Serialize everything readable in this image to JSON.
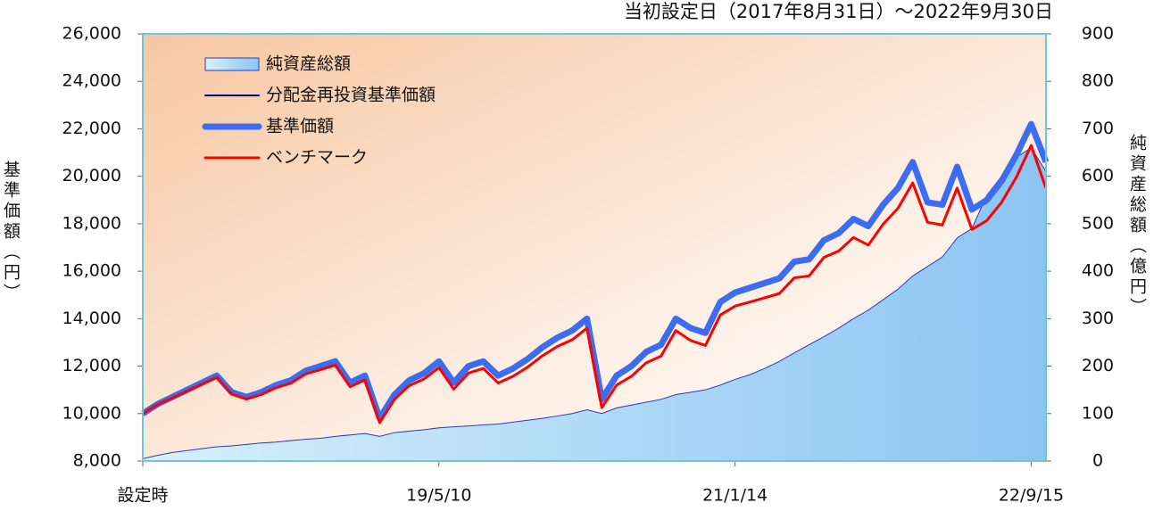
{
  "chart_data": {
    "type": "line",
    "title": "当初設定日（2017年8月31日）〜2022年9月30日",
    "y_label": "基準価額（円）",
    "y2_label": "純資産総額（億円）",
    "categories": [
      "設定時",
      null,
      null,
      null,
      null,
      null,
      null,
      null,
      null,
      null,
      null,
      null,
      null,
      null,
      null,
      null,
      null,
      null,
      null,
      null,
      "19/5/10",
      null,
      null,
      null,
      null,
      null,
      null,
      null,
      null,
      null,
      null,
      null,
      null,
      null,
      null,
      null,
      null,
      null,
      null,
      null,
      "21/1/14",
      null,
      null,
      null,
      null,
      null,
      null,
      null,
      null,
      null,
      null,
      null,
      null,
      null,
      null,
      null,
      null,
      null,
      null,
      null,
      "22/9/15",
      null
    ],
    "series": [
      {
        "name": "純資産総額",
        "color": "#a9dcf8",
        "axis": "y2",
        "kind": "area",
        "values": [
          5,
          12,
          18,
          22,
          26,
          30,
          32,
          35,
          38,
          40,
          43,
          46,
          48,
          52,
          55,
          58,
          52,
          60,
          63,
          66,
          70,
          72,
          74,
          76,
          78,
          82,
          86,
          90,
          95,
          100,
          108,
          100,
          112,
          118,
          124,
          130,
          140,
          145,
          150,
          160,
          172,
          182,
          195,
          210,
          228,
          245,
          262,
          280,
          300,
          318,
          340,
          362,
          390,
          410,
          430,
          470,
          490,
          560,
          600,
          640,
          660,
          610
        ]
      },
      {
        "name": "分配金再投資基準価額",
        "color": "#000080",
        "values": [
          10000,
          10400,
          10700,
          11000,
          11300,
          11600,
          10900,
          10700,
          10900,
          11200,
          11400,
          11800,
          12000,
          12200,
          11300,
          11600,
          9800,
          10800,
          11400,
          11700,
          12200,
          11300,
          12000,
          12200,
          11600,
          11900,
          12300,
          12800,
          13200,
          13500,
          14000,
          10600,
          11600,
          12000,
          12600,
          12900,
          14000,
          13600,
          13400,
          14700,
          15100,
          15300,
          15500,
          15700,
          16400,
          16500,
          17300,
          17600,
          18200,
          17900,
          18800,
          19500,
          20600,
          18900,
          18800,
          20400,
          18600,
          19000,
          19800,
          20900,
          22200,
          20600
        ]
      },
      {
        "name": "基準価額",
        "color": "#3c6cf0",
        "width": 7,
        "values": [
          10000,
          10400,
          10700,
          11000,
          11300,
          11600,
          10900,
          10700,
          10900,
          11200,
          11400,
          11800,
          12000,
          12200,
          11300,
          11600,
          9800,
          10800,
          11400,
          11700,
          12200,
          11300,
          12000,
          12200,
          11600,
          11900,
          12300,
          12800,
          13200,
          13500,
          14000,
          10600,
          11600,
          12000,
          12600,
          12900,
          14000,
          13600,
          13400,
          14700,
          15100,
          15300,
          15500,
          15700,
          16400,
          16500,
          17300,
          17600,
          18200,
          17900,
          18800,
          19500,
          20600,
          18900,
          18800,
          20400,
          18600,
          19000,
          19800,
          20900,
          22200,
          20600
        ]
      },
      {
        "name": "ベンチマーク",
        "color": "#ff0000",
        "width": 3,
        "values": [
          10000,
          10380,
          10660,
          10950,
          11240,
          11530,
          10820,
          10610,
          10800,
          11090,
          11280,
          11670,
          11850,
          12040,
          11130,
          11420,
          9620,
          10600,
          11180,
          11460,
          11940,
          11030,
          11710,
          11900,
          11290,
          11570,
          11960,
          12440,
          12830,
          13110,
          13600,
          10250,
          11200,
          11570,
          12140,
          12420,
          13500,
          13080,
          12870,
          14150,
          14530,
          14700,
          14880,
          15060,
          15720,
          15800,
          16580,
          16850,
          17420,
          17100,
          17980,
          18650,
          19720,
          18060,
          17950,
          19500,
          17760,
          18130,
          18900,
          19960,
          21300,
          19500
        ]
      }
    ],
    "ylim": [
      8000,
      26000
    ],
    "yticks": [
      {
        "value": 8000,
        "label": "8,000"
      },
      {
        "value": 10000,
        "label": "10,000"
      },
      {
        "value": 12000,
        "label": "12,000"
      },
      {
        "value": 14000,
        "label": "14,000"
      },
      {
        "value": 16000,
        "label": "16,000"
      },
      {
        "value": 18000,
        "label": "18,000"
      },
      {
        "value": 20000,
        "label": "20,000"
      },
      {
        "value": 22000,
        "label": "22,000"
      },
      {
        "value": 24000,
        "label": "24,000"
      },
      {
        "value": 26000,
        "label": "26,000"
      }
    ],
    "y2lim": [
      0,
      900
    ],
    "y2ticks": [
      0,
      100,
      200,
      300,
      400,
      500,
      600,
      700,
      800,
      900
    ],
    "legend": "upper-left"
  }
}
